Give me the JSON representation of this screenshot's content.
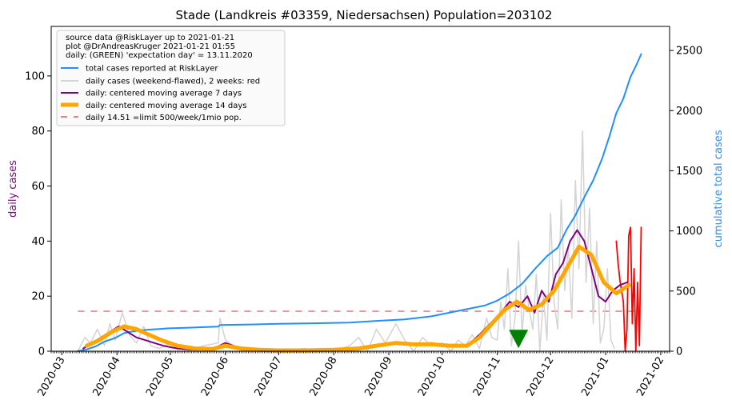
{
  "chart_data": {
    "type": "line",
    "title": "Stade (Landkreis #03359, Niedersachsen) Population=203102",
    "ylabel_left": "daily cases",
    "ylabel_right": "cumulative total cases",
    "xlim": [
      "2020-02-24",
      "2021-02-06"
    ],
    "ylim_left": [
      0,
      118
    ],
    "ylim_right": [
      0,
      2700
    ],
    "yticks_left": [
      0,
      20,
      40,
      60,
      80,
      100
    ],
    "yticks_right": [
      0,
      500,
      1000,
      1500,
      2000,
      2500
    ],
    "xticks": [
      "2020-03",
      "2020-04",
      "2020-05",
      "2020-06",
      "2020-07",
      "2020-08",
      "2020-09",
      "2020-10",
      "2020-11",
      "2020-12",
      "2021-01",
      "2021-02"
    ],
    "xtick_dates": [
      "2020-03-01",
      "2020-04-01",
      "2020-05-01",
      "2020-06-01",
      "2020-07-01",
      "2020-08-01",
      "2020-09-01",
      "2020-10-01",
      "2020-11-01",
      "2020-12-01",
      "2021-01-01",
      "2021-02-01"
    ],
    "legend_position": "top-left",
    "legend_notes": [
      "source data @RiskLayer up to 2021-01-21",
      "plot @DrAndreasKruger 2021-01-21 01:55",
      "daily: (GREEN) 'expectation day' = 13.11.2020"
    ],
    "grid": false,
    "colors": {
      "cumulative": "#1e90ff",
      "daily_raw": "#d3d3d3",
      "daily_last2weeks": "#ff0000",
      "avg7": "#800080",
      "avg14": "#ffa500",
      "limit": "#f08080",
      "marker": "#008000"
    },
    "limit_value": 14.51,
    "limit_range": [
      "2020-03-10",
      "2021-01-21"
    ],
    "expectation_day": {
      "date": "2020-11-13",
      "y": 4
    },
    "series": [
      {
        "name": "total cases reported at RiskLayer",
        "axis": "right",
        "x": [
          "2020-03-10",
          "2020-03-15",
          "2020-03-20",
          "2020-03-25",
          "2020-03-31",
          "2020-04-05",
          "2020-04-10",
          "2020-04-15",
          "2020-04-20",
          "2020-04-25",
          "2020-04-30",
          "2020-05-10",
          "2020-05-20",
          "2020-05-28",
          "2020-05-29",
          "2020-06-15",
          "2020-07-01",
          "2020-07-20",
          "2020-08-10",
          "2020-08-25",
          "2020-09-10",
          "2020-09-25",
          "2020-10-05",
          "2020-10-15",
          "2020-10-25",
          "2020-11-01",
          "2020-11-08",
          "2020-11-15",
          "2020-11-22",
          "2020-11-29",
          "2020-12-05",
          "2020-12-10",
          "2020-12-15",
          "2020-12-20",
          "2020-12-25",
          "2020-12-30",
          "2021-01-03",
          "2021-01-07",
          "2021-01-11",
          "2021-01-15",
          "2021-01-18",
          "2021-01-21"
        ],
        "values": [
          0,
          15,
          40,
          80,
          110,
          150,
          165,
          175,
          180,
          185,
          190,
          195,
          200,
          205,
          218,
          222,
          228,
          232,
          238,
          252,
          265,
          290,
          320,
          350,
          380,
          420,
          480,
          560,
          680,
          790,
          860,
          1010,
          1130,
          1280,
          1420,
          1600,
          1780,
          1980,
          2100,
          2280,
          2370,
          2470
        ]
      },
      {
        "name": "daily cases (weekend-flawed), 2 weeks: red",
        "axis": "left",
        "x": [
          "2020-03-10",
          "2020-03-14",
          "2020-03-17",
          "2020-03-21",
          "2020-03-25",
          "2020-03-28",
          "2020-03-31",
          "2020-04-04",
          "2020-04-08",
          "2020-04-12",
          "2020-04-16",
          "2020-04-20",
          "2020-04-25",
          "2020-05-01",
          "2020-05-10",
          "2020-05-20",
          "2020-05-28",
          "2020-05-29",
          "2020-06-01",
          "2020-06-10",
          "2020-06-20",
          "2020-07-01",
          "2020-07-15",
          "2020-08-01",
          "2020-08-10",
          "2020-08-15",
          "2020-08-20",
          "2020-08-25",
          "2020-08-30",
          "2020-09-05",
          "2020-09-10",
          "2020-09-15",
          "2020-09-20",
          "2020-09-25",
          "2020-10-01",
          "2020-10-06",
          "2020-10-10",
          "2020-10-14",
          "2020-10-18",
          "2020-10-22",
          "2020-10-26",
          "2020-10-29",
          "2020-11-01",
          "2020-11-03",
          "2020-11-05",
          "2020-11-07",
          "2020-11-09",
          "2020-11-11",
          "2020-11-13",
          "2020-11-15",
          "2020-11-17",
          "2020-11-19",
          "2020-11-21",
          "2020-11-23",
          "2020-11-25",
          "2020-11-27",
          "2020-11-29",
          "2020-12-01",
          "2020-12-03",
          "2020-12-05",
          "2020-12-07",
          "2020-12-09",
          "2020-12-11",
          "2020-12-13",
          "2020-12-15",
          "2020-12-17",
          "2020-12-19",
          "2020-12-21",
          "2020-12-23",
          "2020-12-25",
          "2020-12-27",
          "2020-12-29",
          "2020-12-31",
          "2021-01-02",
          "2021-01-04",
          "2021-01-06"
        ],
        "values": [
          0,
          5,
          3,
          8,
          2,
          10,
          4,
          14,
          6,
          3,
          9,
          2,
          1,
          3,
          0,
          2,
          3,
          12,
          4,
          0,
          1,
          0,
          1,
          0,
          2,
          5,
          0,
          8,
          3,
          10,
          4,
          0,
          5,
          2,
          3,
          0,
          4,
          2,
          6,
          1,
          12,
          5,
          4,
          18,
          8,
          30,
          2,
          12,
          40,
          6,
          24,
          15,
          8,
          28,
          0,
          20,
          4,
          50,
          18,
          8,
          55,
          22,
          38,
          12,
          62,
          30,
          80,
          25,
          52,
          10,
          40,
          3,
          8,
          30,
          4,
          1
        ]
      },
      {
        "name": "daily: centered moving average 7 days",
        "axis": "left",
        "x": [
          "2020-03-13",
          "2020-03-18",
          "2020-03-23",
          "2020-03-28",
          "2020-04-02",
          "2020-04-07",
          "2020-04-12",
          "2020-04-17",
          "2020-04-22",
          "2020-04-27",
          "2020-05-05",
          "2020-05-15",
          "2020-05-25",
          "2020-06-01",
          "2020-06-10",
          "2020-06-20",
          "2020-07-01",
          "2020-07-15",
          "2020-08-01",
          "2020-08-15",
          "2020-08-25",
          "2020-09-05",
          "2020-09-15",
          "2020-09-25",
          "2020-10-05",
          "2020-10-15",
          "2020-10-22",
          "2020-10-28",
          "2020-11-03",
          "2020-11-08",
          "2020-11-13",
          "2020-11-18",
          "2020-11-22",
          "2020-11-26",
          "2020-11-30",
          "2020-12-04",
          "2020-12-08",
          "2020-12-12",
          "2020-12-16",
          "2020-12-20",
          "2020-12-24",
          "2020-12-28",
          "2021-01-01",
          "2021-01-05",
          "2021-01-09",
          "2021-01-13"
        ],
        "values": [
          1,
          3,
          5,
          7,
          9,
          7,
          5,
          4,
          3,
          2,
          1,
          0.5,
          0.8,
          3,
          1,
          0.5,
          0.3,
          0.3,
          0.5,
          1,
          2,
          3,
          2.5,
          3,
          2,
          2,
          6,
          10,
          14,
          18,
          16,
          20,
          14,
          22,
          18,
          28,
          32,
          40,
          44,
          40,
          30,
          20,
          18,
          22,
          24,
          25
        ]
      },
      {
        "name": "daily: centered moving average 14 days",
        "axis": "left",
        "x": [
          "2020-03-15",
          "2020-03-22",
          "2020-03-29",
          "2020-04-05",
          "2020-04-12",
          "2020-04-19",
          "2020-04-26",
          "2020-05-05",
          "2020-05-15",
          "2020-05-25",
          "2020-06-01",
          "2020-06-10",
          "2020-06-20",
          "2020-07-01",
          "2020-07-15",
          "2020-08-01",
          "2020-08-15",
          "2020-08-25",
          "2020-09-05",
          "2020-09-15",
          "2020-09-25",
          "2020-10-05",
          "2020-10-15",
          "2020-10-22",
          "2020-10-29",
          "2020-11-05",
          "2020-11-12",
          "2020-11-19",
          "2020-11-26",
          "2020-12-03",
          "2020-12-10",
          "2020-12-17",
          "2020-12-24",
          "2020-12-31",
          "2021-01-07",
          "2021-01-14"
        ],
        "values": [
          2,
          4,
          7,
          9,
          8,
          6,
          4,
          2,
          1,
          0.8,
          2,
          1,
          0.5,
          0.3,
          0.3,
          0.5,
          1,
          2,
          3,
          2.5,
          2.5,
          2,
          2,
          5,
          10,
          15,
          18,
          15,
          17,
          22,
          30,
          38,
          35,
          25,
          21,
          24
        ]
      },
      {
        "name": "daily: last 2 weeks (red)",
        "axis": "left",
        "x": [
          "2021-01-07",
          "2021-01-08",
          "2021-01-09",
          "2021-01-10",
          "2021-01-11",
          "2021-01-12",
          "2021-01-13",
          "2021-01-14",
          "2021-01-15",
          "2021-01-16",
          "2021-01-17",
          "2021-01-18",
          "2021-01-19",
          "2021-01-20",
          "2021-01-21"
        ],
        "values": [
          40,
          32,
          26,
          22,
          18,
          0,
          8,
          42,
          45,
          10,
          30,
          0,
          25,
          2,
          45
        ]
      }
    ],
    "legend": [
      {
        "label": "total cases reported at RiskLayer",
        "style": "cumulative"
      },
      {
        "label": "daily cases (weekend-flawed), 2 weeks: red",
        "style": "daily_raw"
      },
      {
        "label": "daily: centered moving average 7 days",
        "style": "avg7"
      },
      {
        "label": "daily: centered moving average 14 days",
        "style": "avg14"
      },
      {
        "label": "daily 14.51 =limit 500/week/1mio pop.",
        "style": "limit"
      }
    ]
  }
}
